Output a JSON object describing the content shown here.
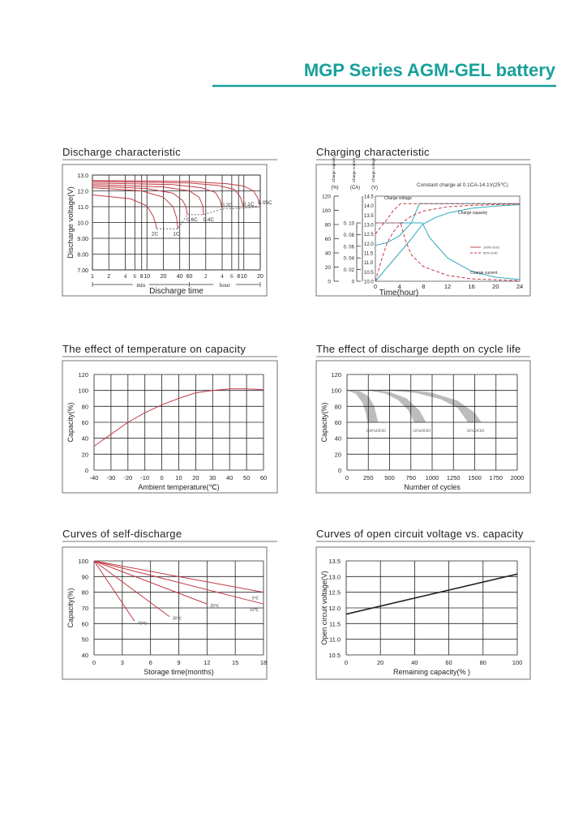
{
  "page": {
    "title": "MGP Series  AGM-GEL battery"
  },
  "colors": {
    "accent": "#17a09b",
    "curve_red": "#c23a45",
    "curve_teal": "#2fa9bb",
    "band_gray": "#bcbcbc",
    "grid": "#222222"
  },
  "chart_data": [
    {
      "type": "line",
      "title": "Discharge characteristic",
      "ylabel": "Discharge voltage(V)",
      "xlabel": "Discharge time",
      "xscale": "log",
      "x_range_labels": [
        "min",
        "hour"
      ],
      "ylim": [
        7,
        13
      ],
      "grid": true,
      "xticks": [
        {
          "label": "1",
          "minutes": 1
        },
        {
          "label": "2",
          "minutes": 2
        },
        {
          "label": "4",
          "minutes": 4
        },
        {
          "label": "6",
          "minutes": 6
        },
        {
          "label": "8",
          "minutes": 8
        },
        {
          "label": "10",
          "minutes": 10
        },
        {
          "label": "20",
          "minutes": 20
        },
        {
          "label": "40",
          "minutes": 40
        },
        {
          "label": "60",
          "minutes": 60
        },
        {
          "label": "2",
          "minutes": 120
        },
        {
          "label": "4",
          "minutes": 240
        },
        {
          "label": "6",
          "minutes": 360
        },
        {
          "label": "8",
          "minutes": 480
        },
        {
          "label": "10",
          "minutes": 600
        },
        {
          "label": "20",
          "minutes": 1200
        }
      ],
      "yticks": [
        "13.0",
        "12.0",
        "11.0",
        "10.0",
        "9.00",
        "8.00",
        "7.00"
      ],
      "series": [
        {
          "name": "2C",
          "points": [
            [
              1,
              11.75
            ],
            [
              5,
              11.5
            ],
            [
              10,
              11.05
            ],
            [
              13,
              10.4
            ],
            [
              14.5,
              9.9
            ],
            [
              15,
              9.6
            ]
          ]
        },
        {
          "name": "1C",
          "points": [
            [
              1,
              12.2
            ],
            [
              8,
              12.0
            ],
            [
              20,
              11.6
            ],
            [
              30,
              11.0
            ],
            [
              35,
              10.3
            ],
            [
              37,
              9.6
            ]
          ]
        },
        {
          "name": "0.6C",
          "points": [
            [
              1,
              12.3
            ],
            [
              10,
              12.15
            ],
            [
              30,
              11.85
            ],
            [
              45,
              11.4
            ],
            [
              52,
              11.0
            ],
            [
              55,
              10.5
            ]
          ]
        },
        {
          "name": "0.4C",
          "points": [
            [
              1,
              12.4
            ],
            [
              20,
              12.25
            ],
            [
              60,
              12.0
            ],
            [
              90,
              11.6
            ],
            [
              105,
              11.1
            ],
            [
              110,
              10.5
            ]
          ]
        },
        {
          "name": "0.2C",
          "points": [
            [
              1,
              12.5
            ],
            [
              30,
              12.4
            ],
            [
              100,
              12.2
            ],
            [
              180,
              11.9
            ],
            [
              220,
              11.4
            ],
            [
              240,
              10.85
            ]
          ]
        },
        {
          "name": "0.1C",
          "points": [
            [
              1,
              12.6
            ],
            [
              60,
              12.5
            ],
            [
              200,
              12.35
            ],
            [
              400,
              12.1
            ],
            [
              520,
              11.6
            ],
            [
              600,
              10.9
            ]
          ]
        },
        {
          "name": "0.05C",
          "points": [
            [
              1,
              12.65
            ],
            [
              60,
              12.6
            ],
            [
              300,
              12.45
            ],
            [
              600,
              12.3
            ],
            [
              900,
              12.0
            ],
            [
              1100,
              11.5
            ],
            [
              1200,
              11.0
            ]
          ]
        }
      ]
    },
    {
      "type": "line",
      "title": "Charging characteristic",
      "annotation": "Constant charge at 0.1CA-14.1V(25℃)",
      "xlabel": "Time(hour)",
      "xlim": [
        0,
        24
      ],
      "xticks": [
        "0",
        "4",
        "8",
        "12",
        "16",
        "20",
        "24"
      ],
      "axes": {
        "capacity": {
          "header": "Charge capacity",
          "unit": "(%)",
          "ticks": [
            "0",
            "20",
            "40",
            "60",
            "80",
            "100",
            "120"
          ]
        },
        "current": {
          "header": "Charge current",
          "unit": "(CA)",
          "ticks": [
            "0",
            "0. 02",
            "0. 04",
            "0. 06",
            "0. 08",
            "0. 10"
          ]
        },
        "voltage": {
          "header": "Charge voltage",
          "unit": "(V)",
          "ticks": [
            "10.0",
            "10.5",
            "11.0",
            "11.5",
            "12.0",
            "12.5",
            "13.0",
            "13.5",
            "14.0",
            "14.5"
          ]
        }
      },
      "curve_labels": {
        "voltage": "Charge voltage",
        "capacity": "Charge capacity",
        "current": "Charge current"
      },
      "legend": [
        {
          "name": "100% DOD",
          "style": "solid"
        },
        {
          "name": "50% DOD",
          "style": "dashed"
        }
      ],
      "series": [
        {
          "dod": "100% DOD",
          "quantity": "voltage",
          "points": [
            [
              0,
              11.9
            ],
            [
              2,
              12.05
            ],
            [
              4,
              12.4
            ],
            [
              6,
              13.1
            ],
            [
              7.3,
              14.1
            ],
            [
              24,
              14.1
            ]
          ]
        },
        {
          "dod": "100% DOD",
          "quantity": "current",
          "points": [
            [
              0,
              0.1
            ],
            [
              7.8,
              0.1
            ],
            [
              9,
              0.075
            ],
            [
              12,
              0.04
            ],
            [
              16,
              0.017
            ],
            [
              20,
              0.007
            ],
            [
              24,
              0.003
            ]
          ]
        },
        {
          "dod": "100% DOD",
          "quantity": "capacity",
          "points": [
            [
              0,
              0
            ],
            [
              2,
              20
            ],
            [
              4,
              40
            ],
            [
              6,
              60
            ],
            [
              7.8,
              80
            ],
            [
              10,
              90
            ],
            [
              12,
              96
            ],
            [
              16,
              103
            ],
            [
              20,
              106
            ],
            [
              24,
              108
            ]
          ]
        },
        {
          "dod": "50% DOD",
          "quantity": "voltage",
          "points": [
            [
              0,
              12.5
            ],
            [
              1,
              12.9
            ],
            [
              2,
              13.3
            ],
            [
              3,
              13.75
            ],
            [
              4.2,
              14.1
            ],
            [
              24,
              14.1
            ]
          ]
        },
        {
          "dod": "50% DOD",
          "quantity": "current",
          "points": [
            [
              0,
              0.1
            ],
            [
              4.2,
              0.1
            ],
            [
              5,
              0.07
            ],
            [
              6,
              0.045
            ],
            [
              8,
              0.025
            ],
            [
              12,
              0.01
            ],
            [
              16,
              0.004
            ],
            [
              24,
              0.001
            ]
          ]
        },
        {
          "dod": "50% DOD",
          "quantity": "capacity",
          "points": [
            [
              0,
              0
            ],
            [
              1,
              30
            ],
            [
              2,
              55
            ],
            [
              3,
              70
            ],
            [
              4,
              80
            ],
            [
              6,
              92
            ],
            [
              8,
              99
            ],
            [
              12,
              105
            ],
            [
              16,
              107
            ],
            [
              24,
              109
            ]
          ]
        }
      ]
    },
    {
      "type": "line",
      "title": "The effect of temperature on capacity",
      "xlabel": "Ambient temperature(℃)",
      "ylabel": "Capacity(%)",
      "xlim": [
        -40,
        60
      ],
      "ylim": [
        0,
        120
      ],
      "grid": true,
      "xticks": [
        "-40",
        "-30",
        "-20",
        "-10",
        "0",
        "10",
        "20",
        "30",
        "40",
        "50",
        "60"
      ],
      "yticks": [
        "0",
        "20",
        "40",
        "60",
        "80",
        "100",
        "120"
      ],
      "series": [
        {
          "points": [
            [
              -40,
              30
            ],
            [
              -30,
              45
            ],
            [
              -20,
              60
            ],
            [
              -10,
              72
            ],
            [
              0,
              82
            ],
            [
              10,
              90
            ],
            [
              20,
              97
            ],
            [
              30,
              100
            ],
            [
              40,
              102
            ],
            [
              50,
              102
            ],
            [
              60,
              101
            ]
          ]
        }
      ]
    },
    {
      "type": "area",
      "title": "The effect of discharge depth on cycle life",
      "xlabel": "Number of cycles",
      "ylabel": "Capacity(%)",
      "xlim": [
        0,
        2000
      ],
      "ylim": [
        0,
        120
      ],
      "grid": true,
      "xticks": [
        "0",
        "250",
        "500",
        "750",
        "1000",
        "1250",
        "1500",
        "1750",
        "2000"
      ],
      "yticks": [
        "0",
        "20",
        "40",
        "60",
        "80",
        "100",
        "120"
      ],
      "bands": [
        {
          "name": "100%DOD",
          "upper": [
            [
              0,
              100
            ],
            [
              150,
              99
            ],
            [
              250,
              93
            ],
            [
              320,
              80
            ],
            [
              365,
              60
            ]
          ],
          "lower": [
            [
              0,
              100
            ],
            [
              100,
              96
            ],
            [
              180,
              85
            ],
            [
              220,
              72
            ],
            [
              240,
              60
            ]
          ]
        },
        {
          "name": "50%DOD",
          "upper": [
            [
              0,
              100
            ],
            [
              300,
              101
            ],
            [
              500,
              98
            ],
            [
              700,
              90
            ],
            [
              850,
              75
            ],
            [
              930,
              60
            ]
          ],
          "lower": [
            [
              250,
              100
            ],
            [
              450,
              96
            ],
            [
              600,
              88
            ],
            [
              720,
              75
            ],
            [
              790,
              60
            ]
          ]
        },
        {
          "name": "30%DOD",
          "upper": [
            [
              250,
              101
            ],
            [
              700,
              101
            ],
            [
              1000,
              97
            ],
            [
              1300,
              87
            ],
            [
              1500,
              72
            ],
            [
              1580,
              60
            ]
          ],
          "lower": [
            [
              500,
              100
            ],
            [
              800,
              97
            ],
            [
              1100,
              89
            ],
            [
              1300,
              78
            ],
            [
              1420,
              60
            ]
          ]
        }
      ]
    },
    {
      "type": "line",
      "title": "Curves of self-discharge",
      "xlabel": "Storage time(months)",
      "ylabel": "Capacity(%)",
      "xlim": [
        0,
        18
      ],
      "ylim": [
        40,
        100
      ],
      "grid": true,
      "xticks": [
        "0",
        "3",
        "6",
        "9",
        "12",
        "15",
        "18"
      ],
      "yticks": [
        "40",
        "50",
        "60",
        "70",
        "80",
        "90",
        "100"
      ],
      "series": [
        {
          "name": "0℃",
          "points": [
            [
              0,
              100
            ],
            [
              18,
              80
            ]
          ]
        },
        {
          "name": "10℃",
          "points": [
            [
              0,
              100
            ],
            [
              18,
              72.5
            ]
          ]
        },
        {
          "name": "20℃",
          "points": [
            [
              0,
              100
            ],
            [
              12,
              72.5
            ]
          ]
        },
        {
          "name": "30℃",
          "points": [
            [
              0,
              100
            ],
            [
              8,
              64.5
            ]
          ]
        },
        {
          "name": "40℃",
          "points": [
            [
              0,
              100
            ],
            [
              4.3,
              61.5
            ]
          ]
        }
      ]
    },
    {
      "type": "line",
      "title": "Curves of open circuit voltage vs. capacity",
      "xlabel": "Remaining capacity(% )",
      "ylabel": "Open circuit voltage(V)",
      "xlim": [
        0,
        100
      ],
      "ylim": [
        10.5,
        13.5
      ],
      "grid": true,
      "xticks": [
        "0",
        "20",
        "40",
        "60",
        "80",
        "100"
      ],
      "yticks": [
        "10.5",
        "11.0",
        "11.5",
        "12.0",
        "12.5",
        "13.0",
        "13.5"
      ],
      "series": [
        {
          "points": [
            [
              0,
              11.8
            ],
            [
              100,
              13.08
            ]
          ]
        }
      ]
    }
  ]
}
